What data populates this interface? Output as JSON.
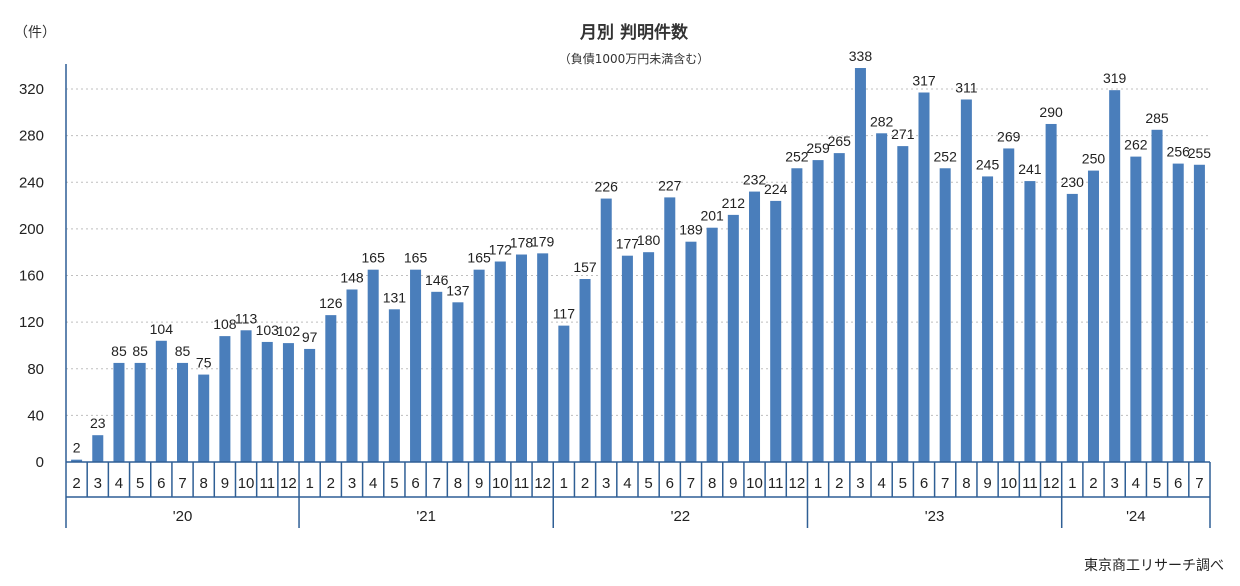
{
  "chart_data": {
    "type": "bar",
    "title": "月別 判明件数",
    "subtitle": "（負債1000万円未満含む）",
    "ylabel": "（件）",
    "xlabel": "",
    "ylim": [
      0,
      340
    ],
    "yticks": [
      0,
      40,
      80,
      120,
      160,
      200,
      240,
      280,
      320
    ],
    "grid": true,
    "legend": "none",
    "source": "東京商工リサーチ調べ",
    "colors": {
      "bar": "#4a7ebb",
      "axis": "#2f5f95",
      "grid": "#bfbfbf"
    },
    "categories": [
      "2",
      "3",
      "4",
      "5",
      "6",
      "7",
      "8",
      "9",
      "10",
      "11",
      "12",
      "1",
      "2",
      "3",
      "4",
      "5",
      "6",
      "7",
      "8",
      "9",
      "10",
      "11",
      "12",
      "1",
      "2",
      "3",
      "4",
      "5",
      "6",
      "7",
      "8",
      "9",
      "10",
      "11",
      "12",
      "1",
      "2",
      "3",
      "4",
      "5",
      "6",
      "7",
      "8",
      "9",
      "10",
      "11",
      "12",
      "1",
      "2",
      "3",
      "4",
      "5",
      "6",
      "7"
    ],
    "values": [
      2,
      23,
      85,
      85,
      104,
      85,
      75,
      108,
      113,
      103,
      102,
      97,
      126,
      148,
      165,
      131,
      165,
      146,
      137,
      165,
      172,
      178,
      179,
      117,
      157,
      226,
      177,
      180,
      227,
      189,
      201,
      212,
      232,
      224,
      252,
      259,
      265,
      338,
      282,
      271,
      317,
      252,
      311,
      245,
      269,
      241,
      290,
      230,
      250,
      319,
      262,
      285,
      256,
      255
    ],
    "year_groups": [
      {
        "label": "'20",
        "count": 11
      },
      {
        "label": "'21",
        "count": 12
      },
      {
        "label": "'22",
        "count": 12
      },
      {
        "label": "'23",
        "count": 12
      },
      {
        "label": "'24",
        "count": 7
      }
    ]
  }
}
